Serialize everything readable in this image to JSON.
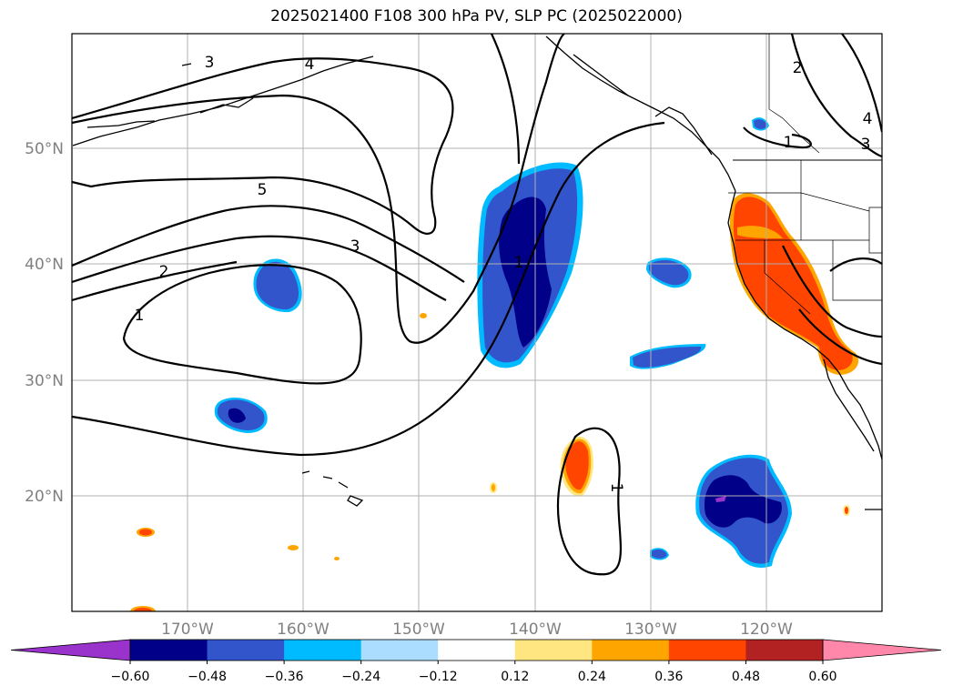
{
  "title": "2025021400 F108 300 hPa PV, SLP PC (2025022000)",
  "lat_labels": [
    "50°N",
    "40°N",
    "30°N",
    "20°N"
  ],
  "lon_labels": [
    "170°W",
    "160°W",
    "150°W",
    "140°W",
    "130°W",
    "120°W"
  ],
  "colorbar": {
    "colors": [
      "#9933cc",
      "#000088",
      "#3355cc",
      "#00bbff",
      "#aaddff",
      "#ffffff",
      "#ffe680",
      "#ffa500",
      "#ff4500",
      "#b22222",
      "#ff88aa"
    ],
    "tick_labels": [
      "−0.60",
      "−0.48",
      "−0.36",
      "−0.24",
      "−0.12",
      "0.12",
      "0.24",
      "0.36",
      "0.48",
      "0.60"
    ]
  },
  "contour_labels": [
    {
      "name": "contour-label-3-nw",
      "text": "3"
    },
    {
      "name": "contour-label-4-nw",
      "text": "4"
    },
    {
      "name": "contour-label-5",
      "text": "5"
    },
    {
      "name": "contour-label-3-mid",
      "text": "3"
    },
    {
      "name": "contour-label-2",
      "text": "2"
    },
    {
      "name": "contour-label-1-west",
      "text": "1"
    },
    {
      "name": "contour-label-1-east",
      "text": "1"
    },
    {
      "name": "contour-label-2-ne",
      "text": "2"
    },
    {
      "name": "contour-label-1-ne",
      "text": "1"
    },
    {
      "name": "contour-label-4-ne",
      "text": "4"
    },
    {
      "name": "contour-label-3-ne",
      "text": "3"
    },
    {
      "name": "contour-label-1-south",
      "text": "1"
    }
  ]
}
